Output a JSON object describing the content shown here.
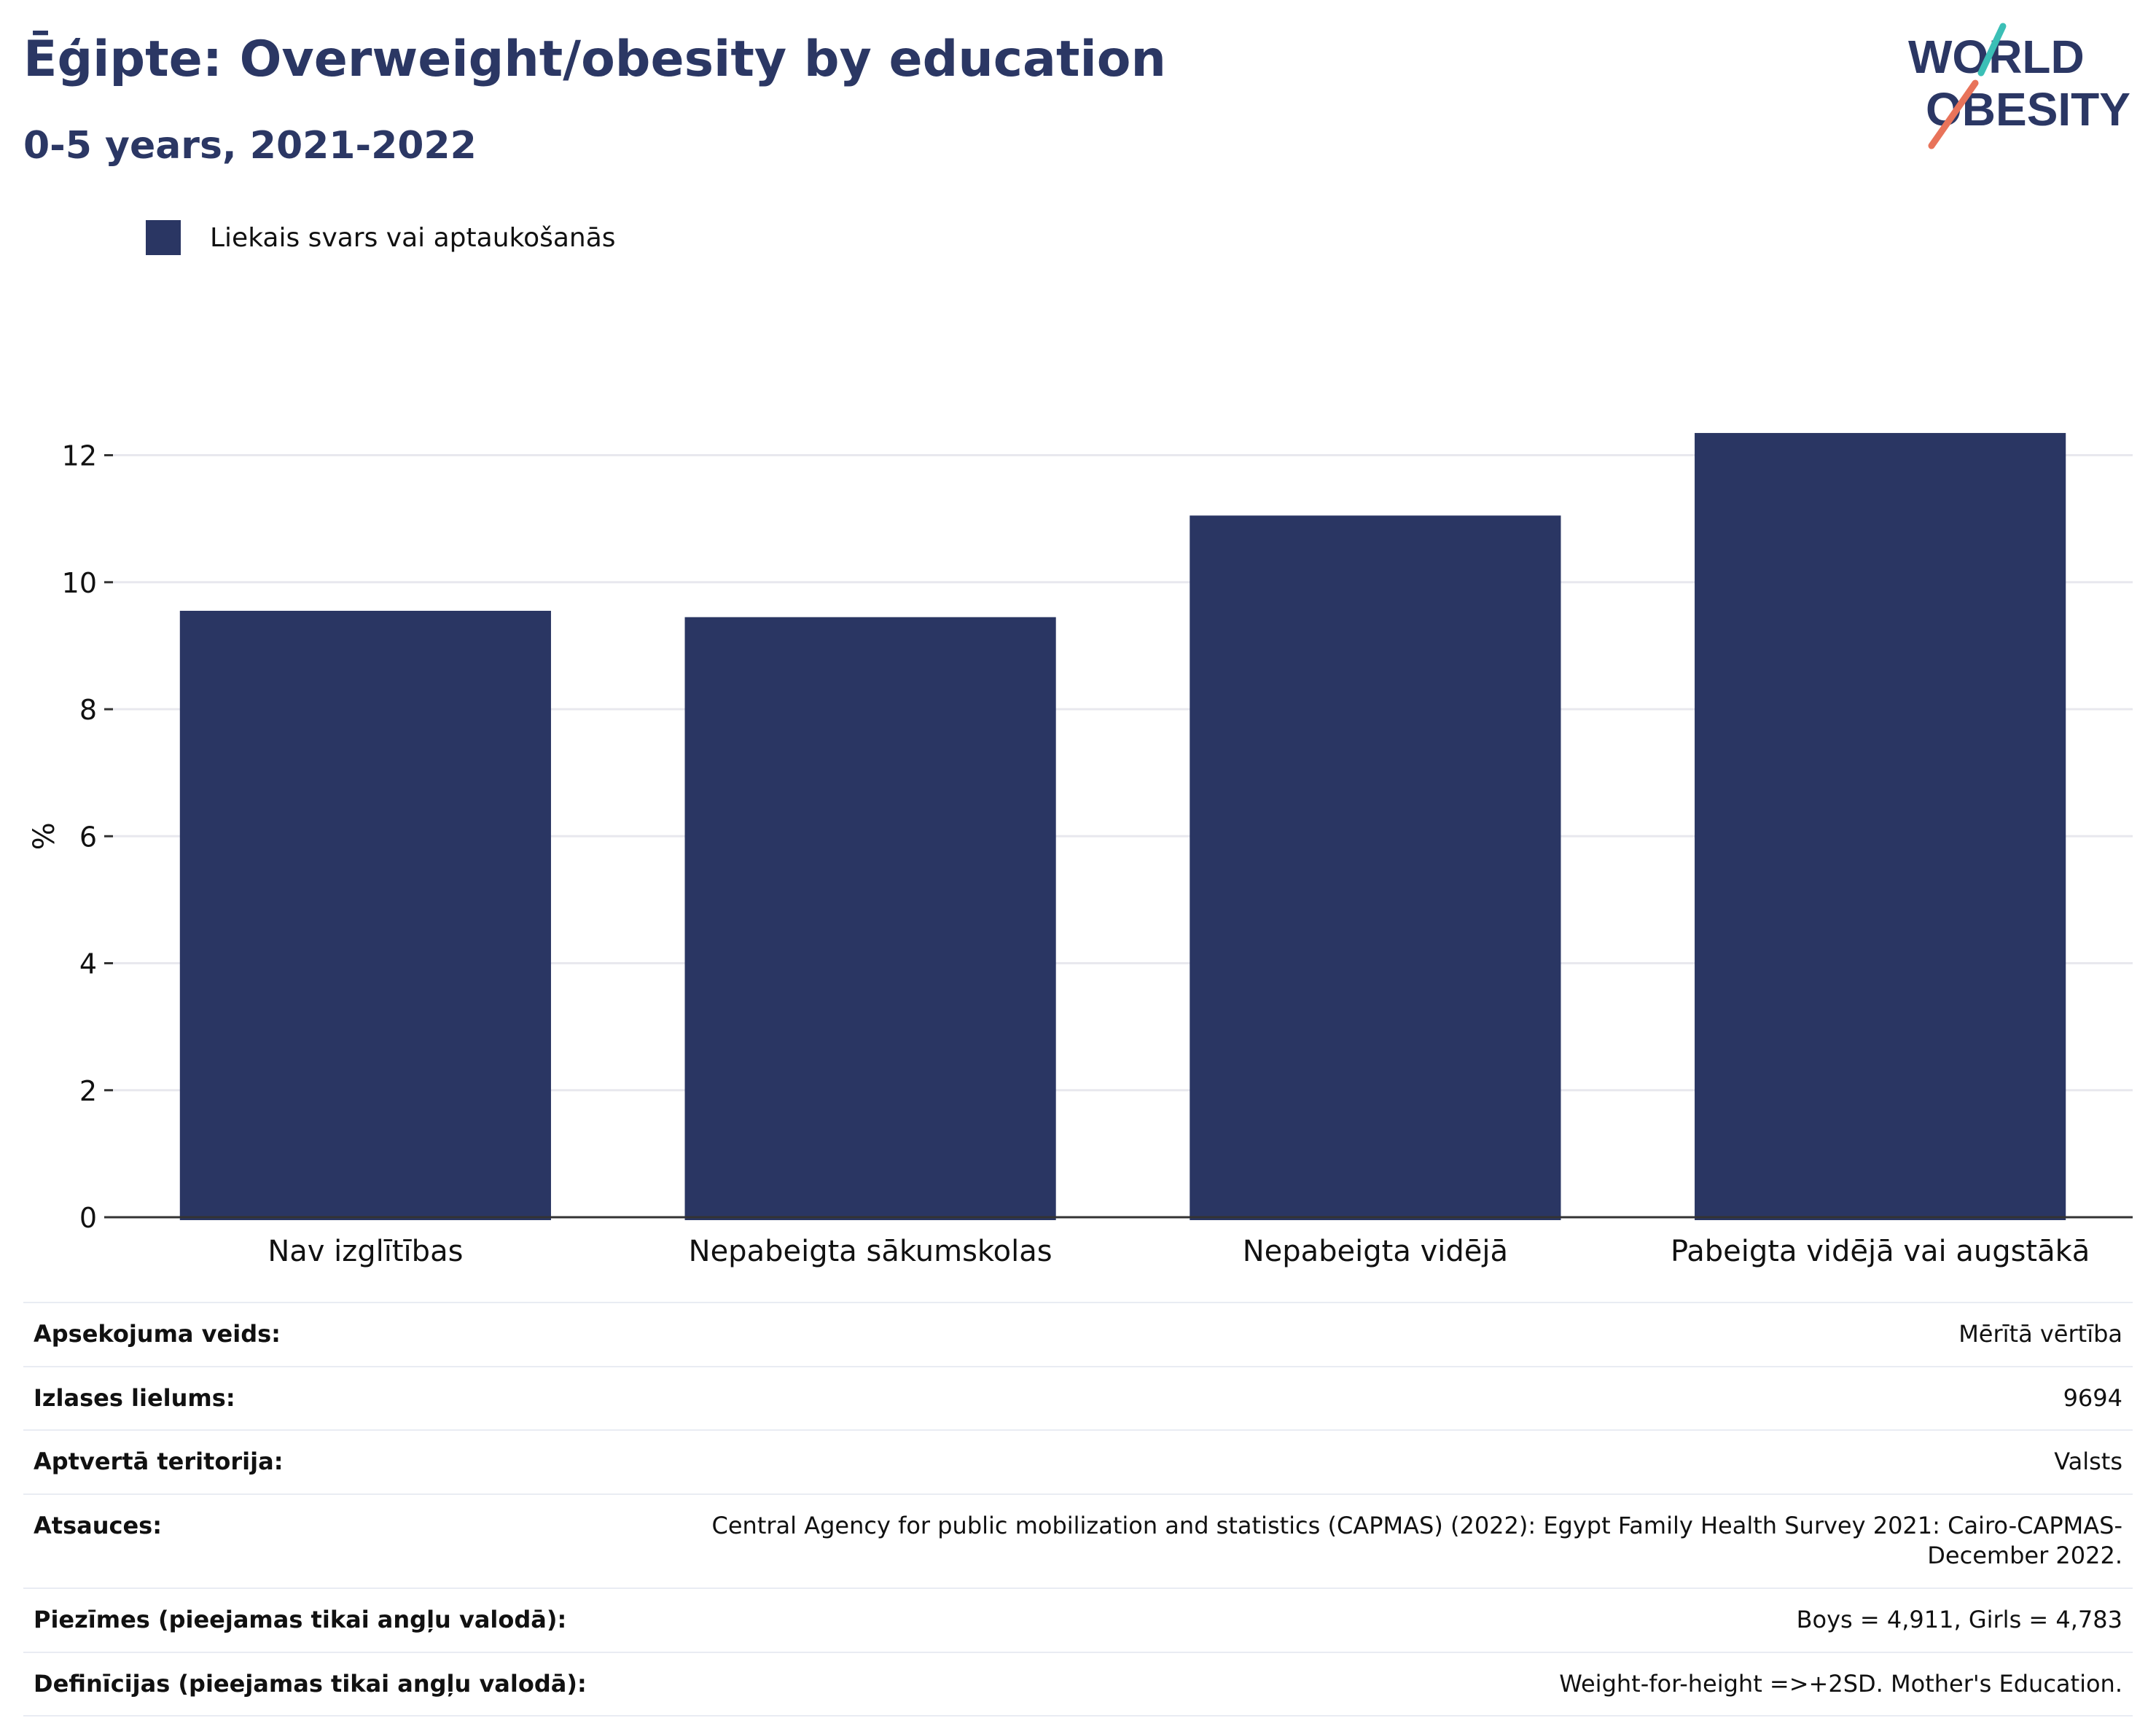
{
  "header": {
    "title": "Ēģipte: Overweight/obesity by education",
    "subtitle": "0-5 years, 2021-2022",
    "logo_line1": "WORLD",
    "logo_line2": "OBESITY"
  },
  "legend": {
    "label": "Liekais svars vai aptaukošanās",
    "color": "#2a3663"
  },
  "chart_data": {
    "type": "bar",
    "categories": [
      "Nav izglītības",
      "Nepabeigta sākumskolas",
      "Nepabeigta vidējā",
      "Pabeigta vidējā vai augstākā"
    ],
    "series": [
      {
        "name": "Liekais svars vai aptaukošanās",
        "values": [
          9.55,
          9.45,
          11.05,
          12.35
        ],
        "color": "#2a3663"
      }
    ],
    "ylabel": "%",
    "xlabel": "",
    "ylim": [
      0,
      13.2
    ],
    "yticks": [
      0,
      2,
      4,
      6,
      8,
      10,
      12
    ],
    "grid": true,
    "legend_position": "top-left"
  },
  "info": [
    {
      "key": "Apsekojuma veids:",
      "value": "Mērītā vērtība"
    },
    {
      "key": "Izlases lielums:",
      "value": "9694"
    },
    {
      "key": "Aptvertā teritorija:",
      "value": "Valsts"
    },
    {
      "key": "Atsauces:",
      "value": "Central Agency for public mobilization and statistics (CAPMAS) (2022): Egypt Family Health Survey 2021: Cairo-CAPMAS-December 2022."
    },
    {
      "key": "Piezīmes (pieejamas tikai angļu valodā):",
      "value": "Boys = 4,911, Girls = 4,783"
    },
    {
      "key": "Definīcijas (pieejamas tikai angļu valodā):",
      "value": "Weight-for-height =>+2SD. Mother's Education."
    }
  ]
}
